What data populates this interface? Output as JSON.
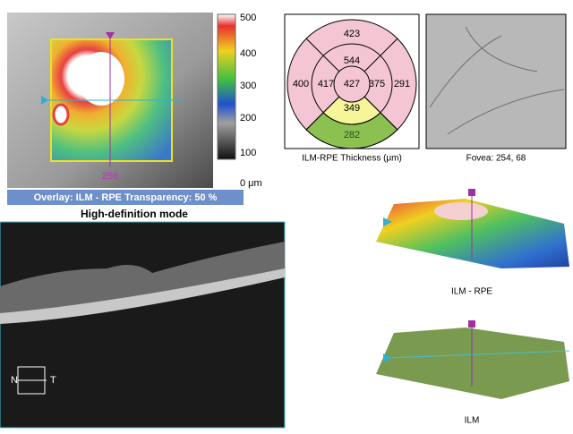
{
  "thickness_map": {
    "colorbar_labels": [
      500,
      400,
      300,
      200,
      100,
      "0 μm"
    ],
    "position_label": "256",
    "overlay_bar": "Overlay: ILM - RPE  Transparency: 50 %"
  },
  "mode_label": "High-definition mode",
  "bscan": {
    "nasal": "N",
    "temporal": "T"
  },
  "etdrs": {
    "outer_superior": 423,
    "inner_superior": 544,
    "outer_nasal": 400,
    "inner_nasal": 417,
    "center": 427,
    "inner_temporal": 375,
    "outer_temporal": 291,
    "inner_inferior": 349,
    "outer_inferior": 282,
    "caption": "ILM-RPE Thickness (μm)"
  },
  "fundus": {
    "caption": "Fovea: 254, 68"
  },
  "surface_ilm_rpe": {
    "caption": "ILM - RPE"
  },
  "surface_ilm": {
    "caption": "ILM"
  }
}
